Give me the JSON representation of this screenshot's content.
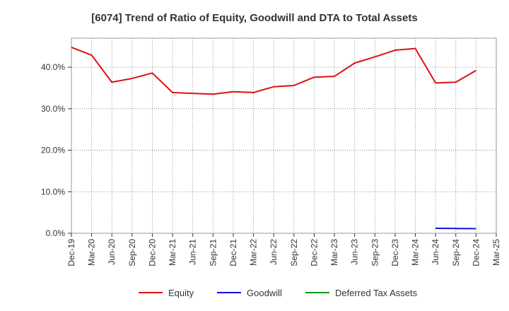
{
  "chart_data": {
    "type": "line",
    "title": "[6074]  Trend of Ratio of Equity, Goodwill and DTA to Total Assets",
    "xlabel": "",
    "ylabel": "",
    "x_ticks": [
      "Dec-19",
      "Mar-20",
      "Jun-20",
      "Sep-20",
      "Dec-20",
      "Mar-21",
      "Jun-21",
      "Sep-21",
      "Dec-21",
      "Mar-22",
      "Jun-22",
      "Sep-22",
      "Dec-22",
      "Mar-23",
      "Jun-23",
      "Sep-23",
      "Dec-23",
      "Mar-24",
      "Jun-24",
      "Sep-24",
      "Dec-24",
      "Mar-25"
    ],
    "y_ticks": [
      "0.0%",
      "10.0%",
      "20.0%",
      "30.0%",
      "40.0%"
    ],
    "y_tick_values": [
      0,
      10,
      20,
      30,
      40
    ],
    "ylim": [
      0,
      47
    ],
    "grid": true,
    "legend_position": "bottom",
    "series": [
      {
        "name": "Equity",
        "color": "#dd1111",
        "values": [
          44.8,
          42.9,
          36.4,
          37.3,
          38.6,
          33.9,
          33.7,
          33.5,
          34.1,
          33.9,
          35.3,
          35.6,
          37.6,
          37.8,
          41.0,
          42.5,
          44.1,
          44.5,
          36.2,
          36.4,
          39.2,
          null
        ]
      },
      {
        "name": "Goodwill",
        "color": "#1111dd",
        "values": [
          null,
          null,
          null,
          null,
          null,
          null,
          null,
          null,
          null,
          null,
          null,
          null,
          null,
          null,
          null,
          null,
          null,
          null,
          1.2,
          1.15,
          1.1,
          null
        ]
      },
      {
        "name": "Deferred Tax Assets",
        "color": "#119911",
        "values": [
          null,
          null,
          null,
          null,
          null,
          null,
          null,
          null,
          null,
          null,
          null,
          null,
          null,
          null,
          null,
          null,
          null,
          null,
          null,
          null,
          null,
          null
        ]
      }
    ]
  }
}
